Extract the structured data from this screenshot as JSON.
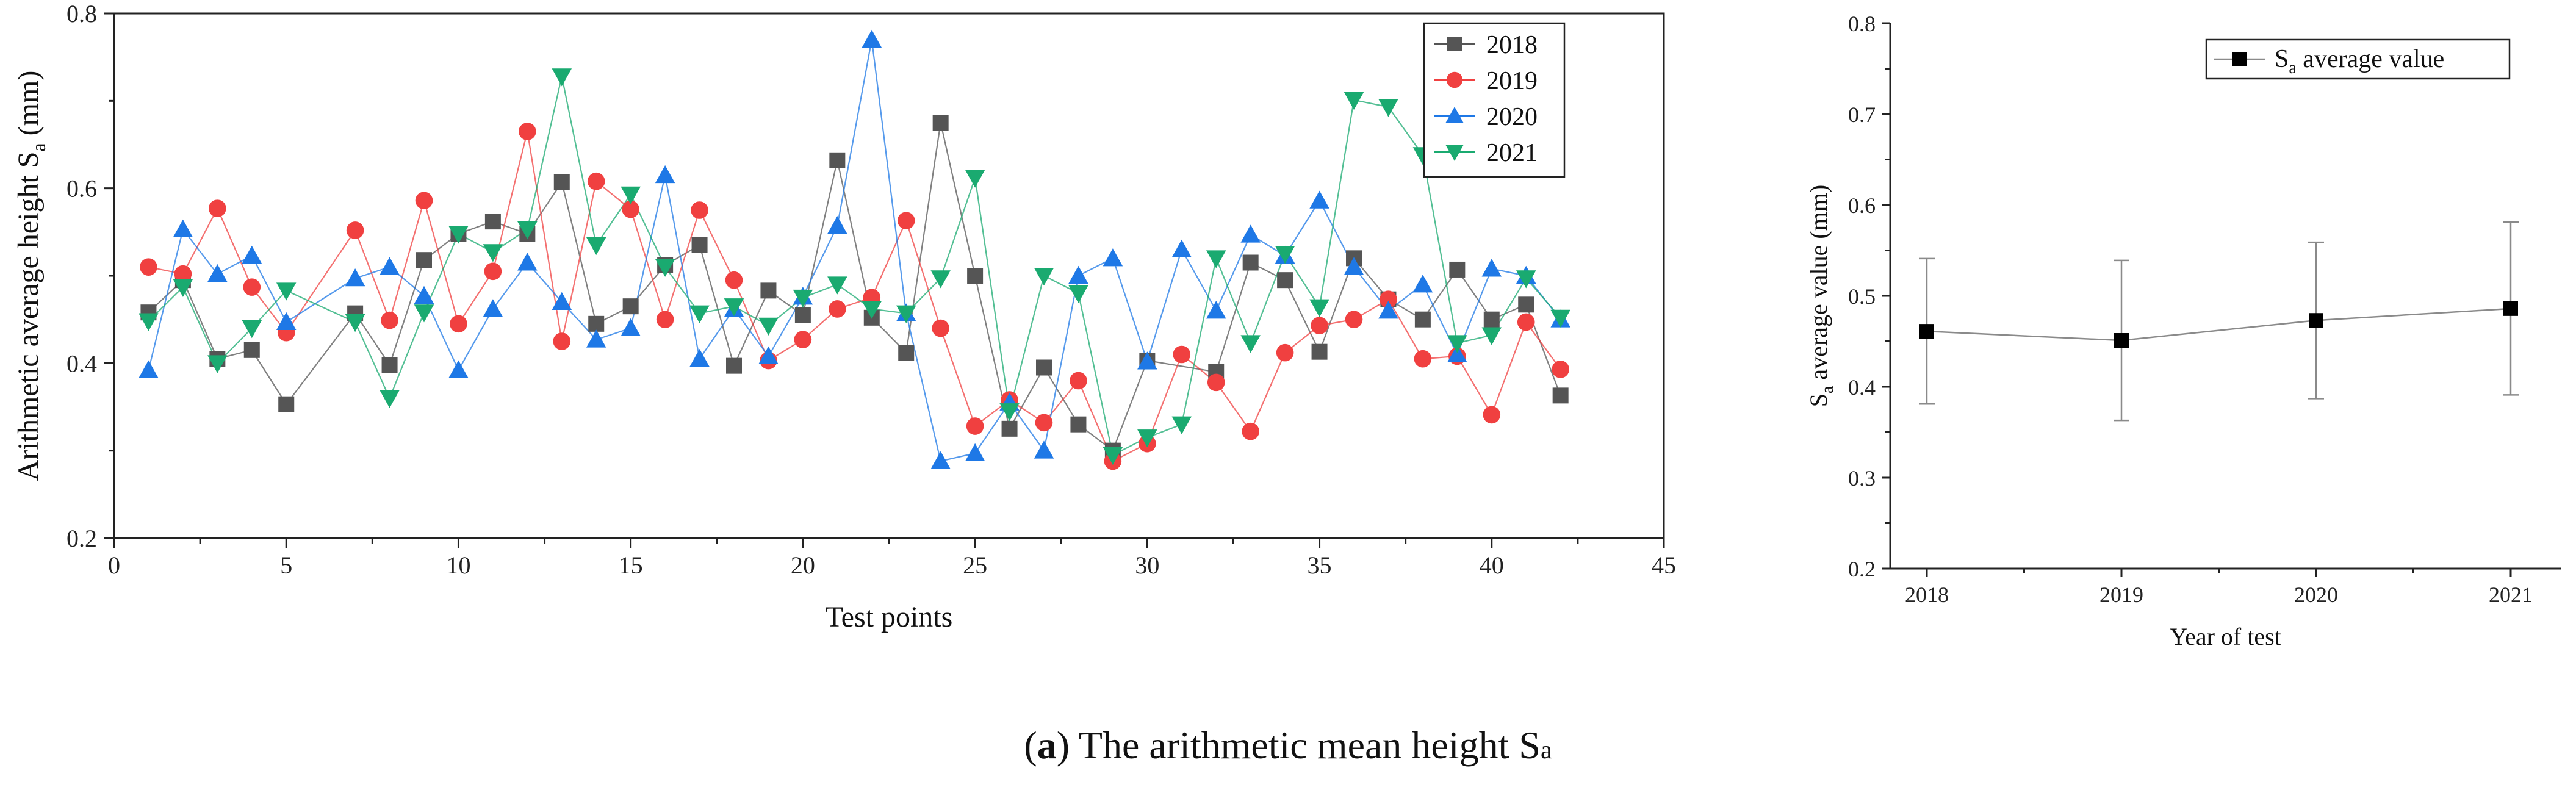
{
  "chart_data": [
    {
      "type": "line",
      "xlabel": "Test points",
      "ylabel_main": "Arithmetic average height  S",
      "ylabel_sub": "a",
      "ylabel_unit": " (mm)",
      "xlim": [
        0,
        45
      ],
      "ylim": [
        0.2,
        0.8
      ],
      "xticks": [
        0,
        5,
        10,
        15,
        20,
        25,
        30,
        35,
        40,
        45
      ],
      "yticks": [
        0.2,
        0.4,
        0.6,
        0.8
      ],
      "tick_labels_x": [
        "0",
        "5",
        "10",
        "15",
        "20",
        "25",
        "30",
        "35",
        "40",
        "45"
      ],
      "tick_labels_y": [
        "0.2",
        "0.4",
        "0.6",
        "0.8"
      ],
      "legend_position": "top-right",
      "series": [
        {
          "name": "2018",
          "color": "#555555",
          "marker": "square",
          "x": [
            1,
            2,
            3,
            4,
            5,
            7,
            8,
            9,
            10,
            11,
            12,
            13,
            14,
            15,
            16,
            17,
            18,
            19,
            20,
            21,
            22,
            23,
            24,
            25,
            26,
            27,
            28,
            29,
            30,
            32,
            33,
            34,
            35,
            36,
            37,
            38,
            39,
            40,
            41,
            42
          ],
          "values": [
            0.458,
            0.495,
            0.405,
            0.415,
            0.353,
            0.457,
            0.398,
            0.518,
            0.548,
            0.562,
            0.548,
            0.607,
            0.445,
            0.465,
            0.512,
            0.535,
            0.397,
            0.483,
            0.455,
            0.632,
            0.452,
            0.412,
            0.675,
            0.5,
            0.325,
            0.395,
            0.33,
            0.3,
            0.403,
            0.39,
            0.515,
            0.495,
            0.413,
            0.52,
            0.473,
            0.45,
            0.507,
            0.45,
            0.467,
            0.363
          ]
        },
        {
          "name": "2019",
          "color": "#f04040",
          "marker": "circle",
          "x": [
            1,
            2,
            3,
            4,
            5,
            7,
            8,
            9,
            10,
            11,
            12,
            13,
            14,
            15,
            16,
            17,
            18,
            19,
            20,
            21,
            22,
            23,
            24,
            25,
            26,
            27,
            28,
            29,
            30,
            31,
            32,
            33,
            34,
            35,
            36,
            37,
            38,
            39,
            40,
            41,
            42
          ],
          "values": [
            0.51,
            0.502,
            0.577,
            0.487,
            0.435,
            0.552,
            0.449,
            0.586,
            0.445,
            0.505,
            0.665,
            0.425,
            0.608,
            0.576,
            0.45,
            0.575,
            0.495,
            0.403,
            0.427,
            0.462,
            0.475,
            0.563,
            0.44,
            0.328,
            0.358,
            0.332,
            0.38,
            0.288,
            0.308,
            0.41,
            0.378,
            0.322,
            0.412,
            0.443,
            0.45,
            0.473,
            0.405,
            0.408,
            0.341,
            0.447,
            0.393
          ]
        },
        {
          "name": "2020",
          "color": "#1e78e6",
          "marker": "triangle-up",
          "x": [
            1,
            2,
            3,
            4,
            5,
            7,
            8,
            9,
            10,
            11,
            12,
            13,
            14,
            15,
            16,
            17,
            18,
            19,
            20,
            21,
            22,
            23,
            24,
            25,
            26,
            27,
            28,
            29,
            30,
            31,
            32,
            33,
            34,
            35,
            36,
            37,
            38,
            39,
            40,
            41,
            42
          ],
          "values": [
            0.392,
            0.553,
            0.502,
            0.523,
            0.447,
            0.497,
            0.51,
            0.477,
            0.392,
            0.462,
            0.515,
            0.47,
            0.427,
            0.44,
            0.615,
            0.405,
            0.462,
            0.408,
            0.476,
            0.557,
            0.77,
            0.457,
            0.288,
            0.297,
            0.355,
            0.3,
            0.5,
            0.52,
            0.402,
            0.53,
            0.46,
            0.547,
            0.523,
            0.586,
            0.51,
            0.46,
            0.49,
            0.41,
            0.508,
            0.5,
            0.45
          ]
        },
        {
          "name": "2021",
          "color": "#1aaa70",
          "marker": "triangle-down",
          "x": [
            1,
            2,
            3,
            4,
            5,
            7,
            8,
            9,
            10,
            11,
            12,
            13,
            14,
            15,
            16,
            17,
            18,
            19,
            20,
            21,
            22,
            23,
            24,
            25,
            26,
            27,
            28,
            29,
            30,
            31,
            32,
            33,
            34,
            35,
            36,
            37,
            38,
            39,
            40,
            41,
            42
          ],
          "values": [
            0.448,
            0.487,
            0.4,
            0.44,
            0.483,
            0.447,
            0.36,
            0.458,
            0.548,
            0.527,
            0.553,
            0.728,
            0.535,
            0.593,
            0.51,
            0.457,
            0.465,
            0.443,
            0.475,
            0.49,
            0.462,
            0.457,
            0.497,
            0.612,
            0.345,
            0.5,
            0.48,
            0.295,
            0.315,
            0.33,
            0.52,
            0.423,
            0.525,
            0.464,
            0.701,
            0.693,
            0.638,
            0.423,
            0.432,
            0.497,
            0.452
          ]
        }
      ]
    },
    {
      "type": "line",
      "categories": [
        "2018",
        "2019",
        "2020",
        "2021"
      ],
      "values": [
        0.461,
        0.451,
        0.473,
        0.486
      ],
      "error_low": [
        0.381,
        0.363,
        0.387,
        0.391
      ],
      "error_high": [
        0.541,
        0.539,
        0.559,
        0.581
      ],
      "xlabel": "Year of test",
      "ylabel_s": "S",
      "ylabel_sub": "a",
      "ylabel_rest": " average value  (mm)",
      "ylim": [
        0.2,
        0.8
      ],
      "yticks": [
        0.2,
        0.3,
        0.4,
        0.5,
        0.6,
        0.7,
        0.8
      ],
      "tick_labels_y": [
        "0.2",
        "0.3",
        "0.4",
        "0.5",
        "0.6",
        "0.7",
        "0.8"
      ],
      "legend_position": "top-right",
      "legend_s": "S",
      "legend_sub": "a",
      "legend_rest": "  average value",
      "color": "#000000",
      "line_color": "#8a8a8a"
    }
  ],
  "caption": {
    "label": "a",
    "text": " The arithmetic mean height S",
    "sub": "a"
  }
}
